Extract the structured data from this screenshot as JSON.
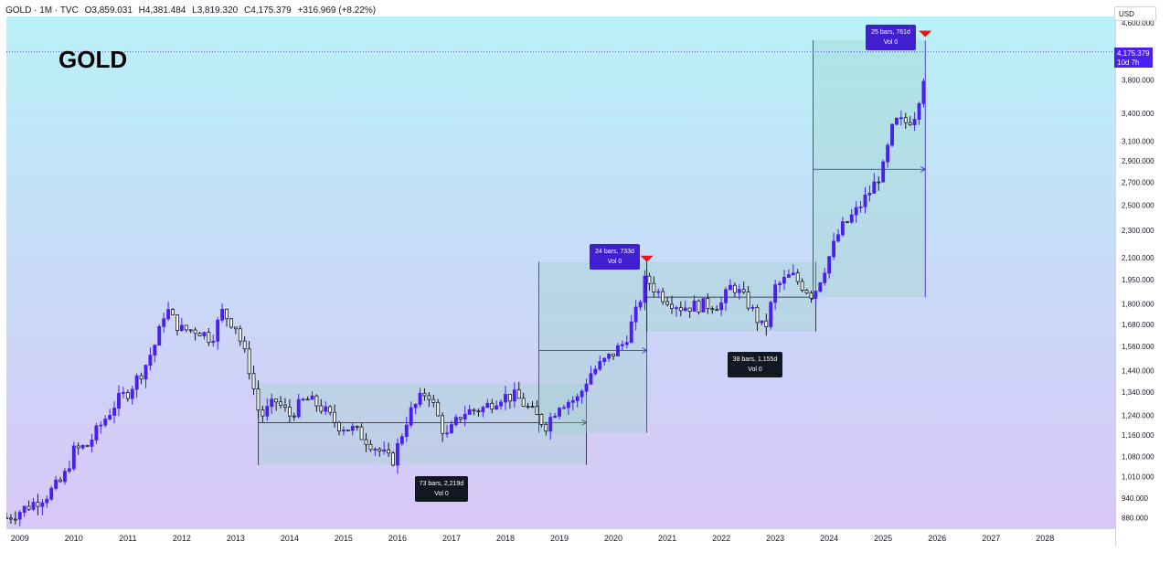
{
  "header": {
    "symbol": "GOLD · 1M · TVC",
    "open": "O3,859.031",
    "high": "H4,381.484",
    "low": "L3,819.320",
    "close": "C4,175.379",
    "change": "+316.969 (+8.22%)"
  },
  "title": "GOLD",
  "currency": "USD",
  "last_price": {
    "value": "4,175.379",
    "countdown": "10d 7h"
  },
  "colors": {
    "bull": "#4a1ff0",
    "bear": "#131722",
    "marker": "#e8141c",
    "range_fill": "#9bd4c9",
    "label_bg": "#3f1fd0",
    "label_dark": "#131722"
  },
  "ranges": [
    {
      "bars_text": "73 bars, 2,219d",
      "vol_text": "Vol 0"
    },
    {
      "bars_text": "24 bars, 733d",
      "vol_text": "Vol 0"
    },
    {
      "bars_text": "38 bars, 1,155d",
      "vol_text": "Vol 0"
    },
    {
      "bars_text": "25 bars, 761d",
      "vol_text": "Vol 0"
    }
  ],
  "chart_data": {
    "type": "candlestick",
    "title": "GOLD",
    "interval": "1M",
    "y_scale": "log",
    "ylim": [
      850,
      4700
    ],
    "xlim": [
      2008.75,
      2029.3
    ],
    "grid": false,
    "y_ticks": [
      "4,600.000",
      "3,800.000",
      "3,400.000",
      "3,100.000",
      "2,900.000",
      "2,700.000",
      "2,500.000",
      "2,300.000",
      "2,100.000",
      "1,950.000",
      "1,800.000",
      "1,680.000",
      "1,560.000",
      "1,440.000",
      "1,340.000",
      "1,240.000",
      "1,160.000",
      "1,080.000",
      "1,010.000",
      "940.000",
      "880.000"
    ],
    "x_ticks": [
      "2009",
      "2010",
      "2011",
      "2012",
      "2013",
      "2014",
      "2015",
      "2016",
      "2017",
      "2018",
      "2019",
      "2020",
      "2021",
      "2022",
      "2023",
      "2024",
      "2025",
      "2026",
      "2027",
      "2028"
    ],
    "price_path": [
      [
        2008.75,
        880
      ],
      [
        2009.0,
        900
      ],
      [
        2009.5,
        950
      ],
      [
        2009.8,
        1000
      ],
      [
        2010.0,
        1100
      ],
      [
        2010.25,
        1120
      ],
      [
        2010.5,
        1200
      ],
      [
        2010.8,
        1300
      ],
      [
        2011.0,
        1340
      ],
      [
        2011.3,
        1450
      ],
      [
        2011.55,
        1600
      ],
      [
        2011.7,
        1780
      ],
      [
        2011.85,
        1700
      ],
      [
        2012.0,
        1650
      ],
      [
        2012.3,
        1650
      ],
      [
        2012.55,
        1600
      ],
      [
        2012.75,
        1750
      ],
      [
        2013.0,
        1670
      ],
      [
        2013.25,
        1450
      ],
      [
        2013.45,
        1230
      ],
      [
        2013.75,
        1300
      ],
      [
        2014.0,
        1240
      ],
      [
        2014.3,
        1310
      ],
      [
        2014.55,
        1280
      ],
      [
        2014.9,
        1200
      ],
      [
        2015.2,
        1180
      ],
      [
        2015.5,
        1130
      ],
      [
        2015.9,
        1060
      ],
      [
        2016.2,
        1240
      ],
      [
        2016.55,
        1350
      ],
      [
        2016.9,
        1150
      ],
      [
        2017.2,
        1250
      ],
      [
        2017.6,
        1270
      ],
      [
        2017.9,
        1320
      ],
      [
        2018.2,
        1320
      ],
      [
        2018.55,
        1240
      ],
      [
        2018.75,
        1200
      ],
      [
        2019.0,
        1290
      ],
      [
        2019.35,
        1310
      ],
      [
        2019.55,
        1420
      ],
      [
        2019.9,
        1500
      ],
      [
        2020.2,
        1580
      ],
      [
        2020.45,
        1770
      ],
      [
        2020.6,
        1960
      ],
      [
        2020.85,
        1860
      ],
      [
        2021.25,
        1780
      ],
      [
        2021.6,
        1790
      ],
      [
        2022.0,
        1800
      ],
      [
        2022.2,
        1920
      ],
      [
        2022.5,
        1800
      ],
      [
        2022.8,
        1640
      ],
      [
        2023.0,
        1900
      ],
      [
        2023.3,
        1980
      ],
      [
        2023.7,
        1850
      ],
      [
        2023.95,
        2060
      ],
      [
        2024.2,
        2300
      ],
      [
        2024.5,
        2450
      ],
      [
        2024.8,
        2650
      ],
      [
        2025.0,
        2830
      ],
      [
        2025.2,
        3300
      ],
      [
        2025.45,
        3300
      ],
      [
        2025.6,
        3400
      ],
      [
        2025.75,
        3850
      ],
      [
        2025.78,
        4175
      ]
    ],
    "last_close": 4175.379,
    "ranges": [
      {
        "x_start": 2013.42,
        "x_end": 2019.5,
        "y_low": 1050,
        "y_high": 1380,
        "arrow_y": 1210,
        "label": "73 bars, 2,219d"
      },
      {
        "x_start": 2018.62,
        "x_end": 2020.62,
        "y_low": 1170,
        "y_high": 2070,
        "arrow_y": 1540,
        "label": "24 bars, 733d"
      },
      {
        "x_start": 2020.62,
        "x_end": 2023.75,
        "y_low": 1640,
        "y_high": 2070,
        "arrow_y": 1840,
        "label": "38 bars, 1,155d"
      },
      {
        "x_start": 2023.7,
        "x_end": 2025.78,
        "y_low": 1840,
        "y_high": 4340,
        "arrow_y": 2820,
        "label": "25 bars, 761d"
      }
    ],
    "markers": [
      {
        "x": 2020.62,
        "y": 2075
      },
      {
        "x": 2025.78,
        "y": 4400
      }
    ]
  }
}
